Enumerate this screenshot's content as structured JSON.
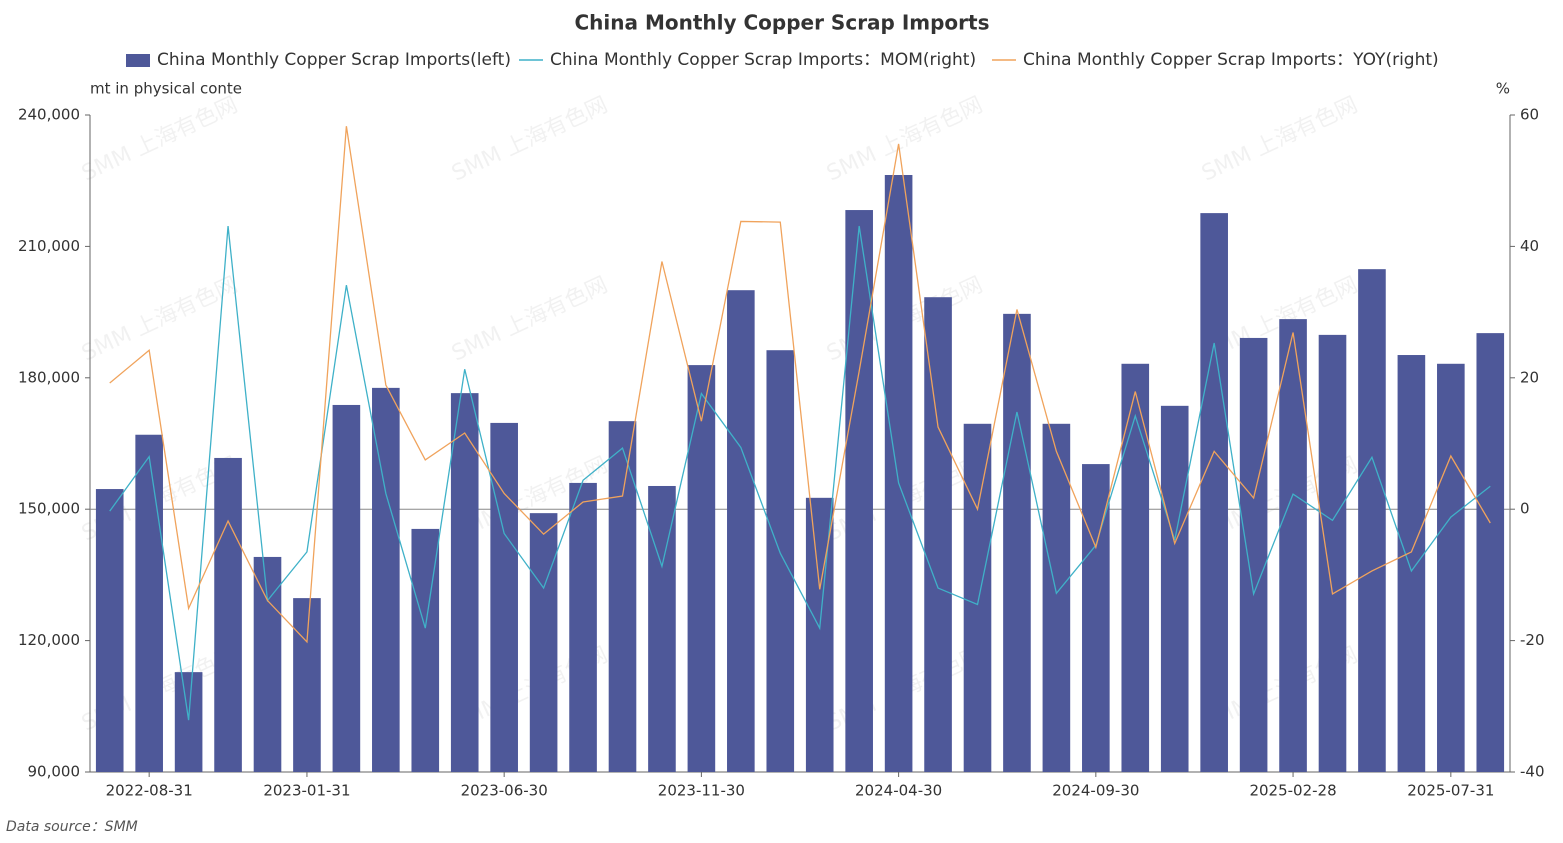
{
  "chart_data": {
    "type": "bar-line",
    "title": "China Monthly Copper Scrap Imports",
    "y_label": "mt in physical conte",
    "y2_label": "%",
    "source": "Data source：SMM",
    "watermark": "SMM 上海有色网",
    "categories": [
      null,
      "2022-08-31",
      null,
      null,
      null,
      "2023-01-31",
      null,
      null,
      null,
      null,
      "2023-06-30",
      null,
      null,
      null,
      null,
      "2023-11-30",
      null,
      null,
      null,
      null,
      "2024-04-30",
      null,
      null,
      null,
      null,
      "2024-09-30",
      null,
      null,
      null,
      null,
      "2025-02-28",
      null,
      null,
      null,
      "2025-07-31",
      null
    ],
    "ylim": [
      90000,
      240000
    ],
    "yticks": [
      {
        "value": 90000,
        "label": "90,000"
      },
      {
        "value": 120000,
        "label": "120,000"
      },
      {
        "value": 150000,
        "label": "150,000"
      },
      {
        "value": 180000,
        "label": "180,000"
      },
      {
        "value": 210000,
        "label": "210,000"
      },
      {
        "value": 240000,
        "label": "240,000"
      }
    ],
    "y2lim": [
      -40,
      60
    ],
    "y2ticks": [
      -40,
      -20,
      0,
      20,
      40,
      60
    ],
    "series": [
      {
        "name": "China Monthly Copper Scrap Imports(left)",
        "type": "bar",
        "color": "#4e5899",
        "values": [
          154600,
          167000,
          112800,
          161700,
          139100,
          129700,
          173800,
          177700,
          145500,
          176500,
          169700,
          149100,
          156000,
          170100,
          155300,
          182900,
          200000,
          186300,
          152600,
          218300,
          226300,
          198400,
          169500,
          194600,
          169500,
          160300,
          183200,
          173600,
          217600,
          189100,
          193400,
          189800,
          204800,
          185200,
          183200,
          190200
        ]
      },
      {
        "name": "China Monthly Copper Scrap Imports：MOM(right)",
        "type": "line",
        "axis": "y2",
        "color": "#3fb1c8",
        "values": [
          -0.3,
          8.0,
          -32.1,
          43.1,
          -13.9,
          -6.5,
          34.1,
          2.4,
          -18.1,
          21.3,
          -3.7,
          -12.0,
          4.4,
          9.3,
          -8.7,
          17.6,
          9.4,
          -6.7,
          -18.1,
          43.1,
          4.0,
          -12.0,
          -14.5,
          14.8,
          -12.8,
          -5.5,
          14.2,
          -4.7,
          25.3,
          -12.9,
          2.3,
          -1.7,
          7.9,
          -9.4,
          -1.2,
          3.5
        ]
      },
      {
        "name": "China Monthly Copper Scrap Imports：YOY(right)",
        "type": "line",
        "axis": "y2",
        "color": "#f0a35c",
        "values": [
          19.2,
          24.2,
          -15.1,
          -1.8,
          -13.9,
          -20.2,
          58.3,
          18.9,
          7.5,
          11.6,
          2.4,
          -3.8,
          1.1,
          2.0,
          37.7,
          13.4,
          43.8,
          43.7,
          -12.2,
          21.0,
          55.6,
          12.5,
          0,
          30.4,
          8.8,
          -5.8,
          17.9,
          -5.2,
          8.8,
          1.7,
          26.9,
          -12.9,
          -9.4,
          -6.5,
          8.1,
          -2.1
        ]
      }
    ]
  }
}
